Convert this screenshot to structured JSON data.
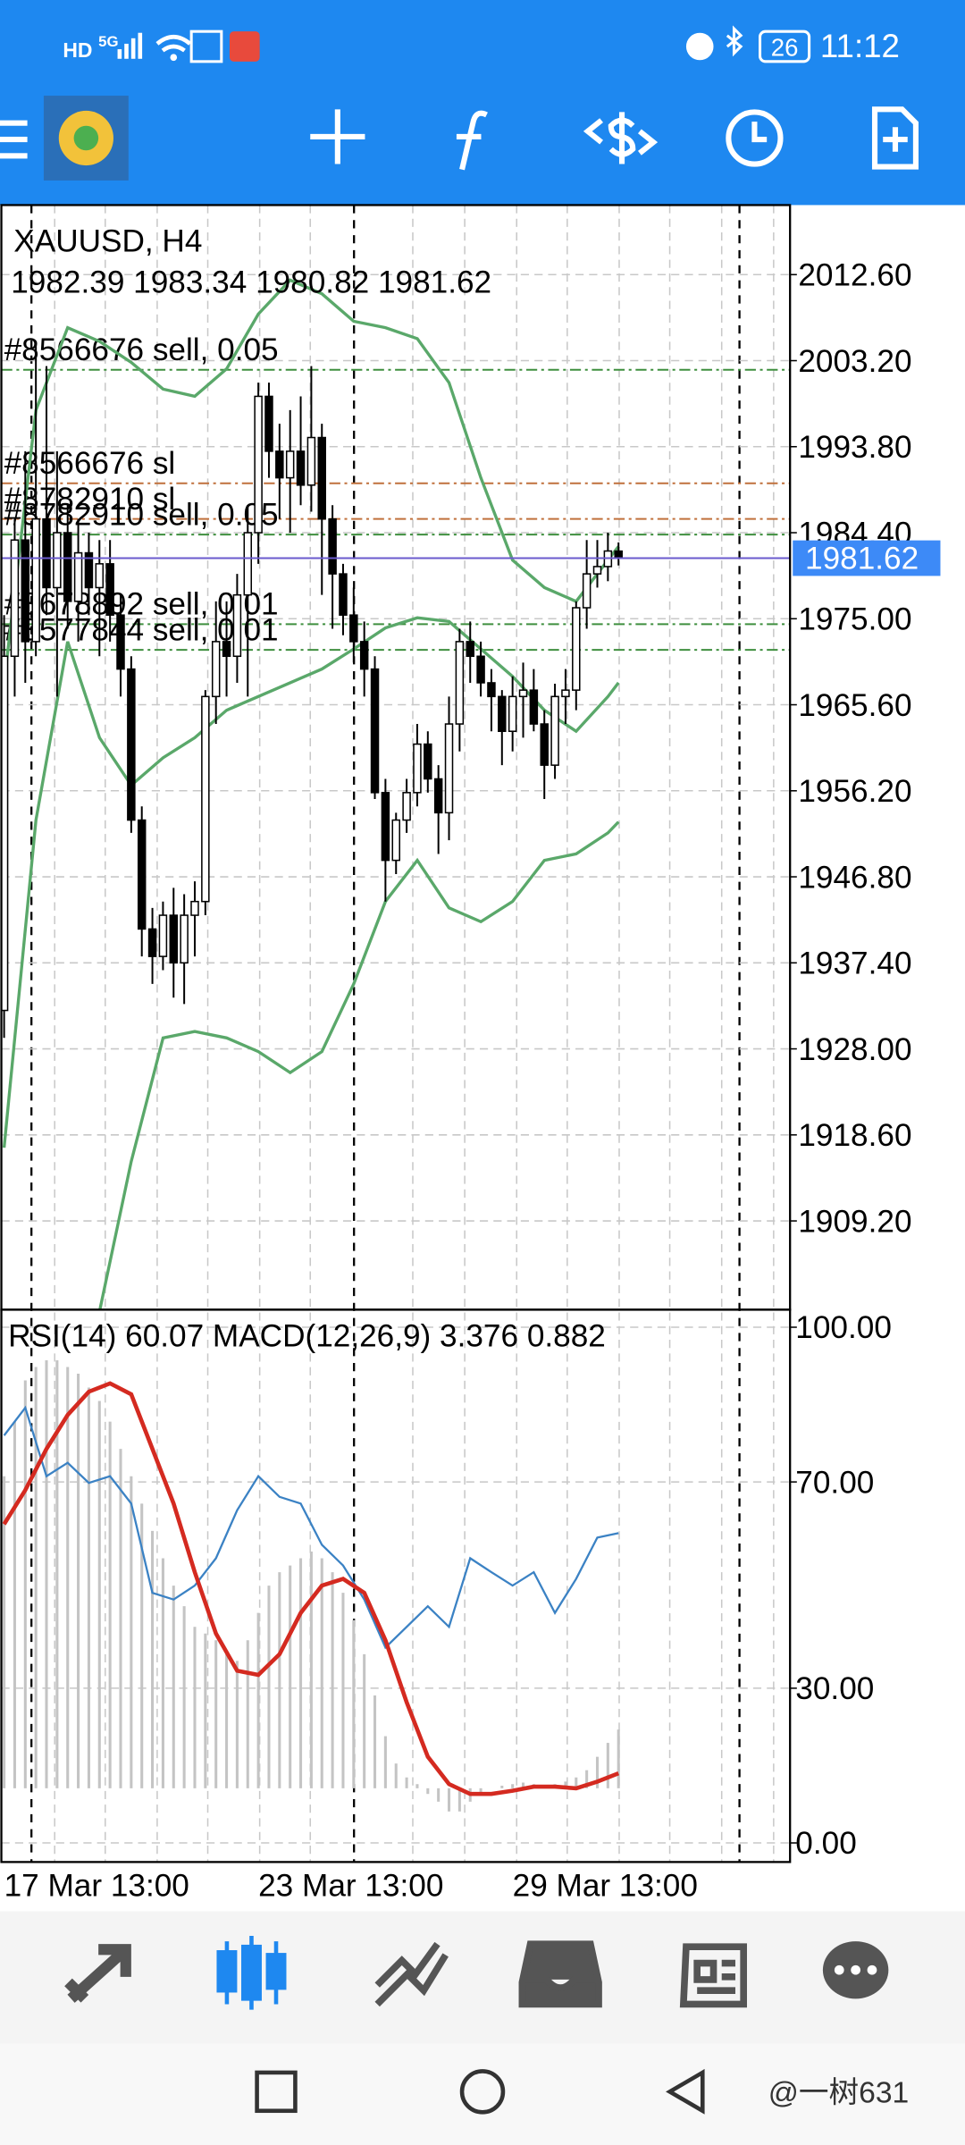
{
  "status_bar": {
    "network": "HD",
    "signal": "5G",
    "time": "11:12",
    "battery": "26"
  },
  "chart_data": {
    "type": "candlestick",
    "title": "XAUUSD, H4",
    "subtitle": "1982.39 1983.34 1980.82 1981.62",
    "categories": [
      "17 Mar 13:00",
      null,
      null,
      null,
      null,
      null,
      null,
      null,
      null,
      null,
      null,
      null,
      null,
      null,
      null,
      null,
      null,
      null,
      null,
      null,
      null,
      null,
      null,
      null,
      "23 Mar 13:00",
      null,
      null,
      null,
      null,
      null,
      null,
      null,
      null,
      null,
      null,
      null,
      null,
      null,
      null,
      null,
      null,
      null,
      null,
      null,
      null,
      null,
      null,
      null,
      "29 Mar 13:00",
      null,
      null,
      null,
      null,
      null,
      null,
      null,
      null,
      null,
      null
    ],
    "ohlc": [
      [
        1932.2,
        1975.4,
        1929.2,
        1970.9
      ],
      [
        1970.9,
        1985.9,
        1966.5,
        1983.6
      ],
      [
        1983.6,
        1993.3,
        1968.0,
        1972.5
      ],
      [
        1972.5,
        2005.3,
        1970.9,
        1985.9
      ],
      [
        1985.9,
        2002.6,
        1975.4,
        1978.4
      ],
      [
        1978.4,
        1993.3,
        1966.5,
        1984.4
      ],
      [
        1984.4,
        1987.4,
        1973.9,
        1976.9
      ],
      [
        1976.9,
        1985.9,
        1972.5,
        1982.2
      ],
      [
        1982.2,
        1984.4,
        1975.4,
        1978.4
      ],
      [
        1978.4,
        1983.6,
        1970.9,
        1981.0
      ],
      [
        1981.0,
        1983.6,
        1972.5,
        1975.4
      ],
      [
        1975.4,
        1977.6,
        1966.5,
        1969.5
      ],
      [
        1969.5,
        1970.9,
        1951.6,
        1953.0
      ],
      [
        1953.0,
        1954.5,
        1938.1,
        1941.1
      ],
      [
        1941.1,
        1943.4,
        1935.1,
        1938.1
      ],
      [
        1938.1,
        1944.1,
        1936.6,
        1942.6
      ],
      [
        1942.6,
        1945.6,
        1933.6,
        1937.4
      ],
      [
        1937.4,
        1944.9,
        1932.9,
        1942.6
      ],
      [
        1942.6,
        1946.3,
        1938.1,
        1944.1
      ],
      [
        1944.1,
        1967.2,
        1942.6,
        1966.5
      ],
      [
        1966.5,
        1976.9,
        1963.5,
        1972.5
      ],
      [
        1972.5,
        1976.9,
        1966.5,
        1970.9
      ],
      [
        1970.9,
        1979.9,
        1968.0,
        1977.6
      ],
      [
        1977.6,
        1987.4,
        1966.5,
        1984.4
      ],
      [
        1984.4,
        2000.8,
        1981.0,
        1999.3
      ],
      [
        1999.3,
        2000.8,
        1990.4,
        1993.3
      ],
      [
        1993.3,
        1996.3,
        1985.9,
        1990.4
      ],
      [
        1990.4,
        1997.8,
        1984.4,
        1993.3
      ],
      [
        1993.3,
        1999.3,
        1987.4,
        1989.6
      ],
      [
        1989.6,
        2002.6,
        1986.7,
        1994.8
      ],
      [
        1994.8,
        1996.3,
        1977.6,
        1985.9
      ],
      [
        1985.9,
        1987.4,
        1973.9,
        1979.9
      ],
      [
        1979.9,
        1981.0,
        1973.2,
        1975.4
      ],
      [
        1975.4,
        1978.4,
        1970.2,
        1972.5
      ],
      [
        1972.5,
        1974.7,
        1966.5,
        1969.5
      ],
      [
        1969.5,
        1970.9,
        1955.3,
        1956.0
      ],
      [
        1956.0,
        1957.5,
        1944.1,
        1948.6
      ],
      [
        1948.6,
        1953.8,
        1947.1,
        1953.0
      ],
      [
        1953.0,
        1957.5,
        1951.6,
        1956.0
      ],
      [
        1956.0,
        1963.5,
        1954.5,
        1961.3
      ],
      [
        1961.3,
        1962.7,
        1956.0,
        1957.5
      ],
      [
        1957.5,
        1959.0,
        1949.3,
        1953.8
      ],
      [
        1953.8,
        1966.5,
        1950.8,
        1963.5
      ],
      [
        1963.5,
        1973.9,
        1960.5,
        1972.5
      ],
      [
        1972.5,
        1974.7,
        1968.0,
        1970.9
      ],
      [
        1970.9,
        1972.5,
        1966.5,
        1968.0
      ],
      [
        1968.0,
        1969.5,
        1962.7,
        1966.5
      ],
      [
        1966.5,
        1967.2,
        1959.0,
        1962.7
      ],
      [
        1962.7,
        1968.7,
        1960.5,
        1966.5
      ],
      [
        1966.5,
        1970.2,
        1962.0,
        1967.2
      ],
      [
        1967.2,
        1969.5,
        1962.7,
        1963.5
      ],
      [
        1963.5,
        1965.0,
        1955.3,
        1959.0
      ],
      [
        1959.0,
        1967.9,
        1957.5,
        1966.5
      ],
      [
        1966.5,
        1969.5,
        1963.5,
        1967.2
      ],
      [
        1967.2,
        1976.9,
        1965.0,
        1976.2
      ],
      [
        1976.2,
        1983.6,
        1973.9,
        1979.9
      ],
      [
        1979.9,
        1983.6,
        1978.4,
        1980.7
      ],
      [
        1980.7,
        1984.4,
        1979.1,
        1982.4
      ],
      [
        1982.39,
        1983.34,
        1980.82,
        1981.62
      ]
    ],
    "bull_color": "#ffffff",
    "bear_color": "#000000",
    "ylim": [
      1899.5,
      2020.2
    ],
    "yticks": [
      {
        "value": 2012.6,
        "label": "2012.60"
      },
      {
        "value": 2003.2,
        "label": "2003.20"
      },
      {
        "value": 1993.8,
        "label": "1993.80"
      },
      {
        "value": 1984.4,
        "label": "1984.40"
      },
      {
        "value": 1975,
        "label": "1975.00"
      },
      {
        "value": 1965.6,
        "label": "1965.60"
      },
      {
        "value": 1956.2,
        "label": "1956.20"
      },
      {
        "value": 1946.8,
        "label": "1946.80"
      },
      {
        "value": 1937.4,
        "label": "1937.40"
      },
      {
        "value": 1928,
        "label": "1928.00"
      },
      {
        "value": 1918.6,
        "label": "1918.60"
      },
      {
        "value": 1909.2,
        "label": "1909.20"
      }
    ],
    "grid": true,
    "bands": {
      "color": "#5aa86a",
      "x": [
        0,
        3,
        6,
        9,
        12,
        15,
        18,
        21,
        24,
        27,
        30,
        33,
        36,
        39,
        42,
        45,
        48,
        51,
        54,
        57,
        58
      ],
      "upper": [
        1968.0,
        1997.8,
        2006.8,
        2005.3,
        2003.0,
        2000.1,
        1999.3,
        2002.3,
        2008.3,
        2012.0,
        2010.5,
        2007.5,
        2006.8,
        2005.6,
        2000.8,
        1990.4,
        1981.4,
        1978.4,
        1976.9,
        1981.4,
        1982.9
      ],
      "middle": [
        1917.2,
        1953.0,
        1972.5,
        1962.0,
        1956.8,
        1959.8,
        1962.0,
        1965.0,
        1966.5,
        1968.0,
        1969.5,
        1971.7,
        1974.0,
        1975.1,
        1974.7,
        1971.7,
        1968.7,
        1965.0,
        1962.7,
        1966.5,
        1968.0
      ],
      "lower": [
        1863.5,
        1878.4,
        1891.9,
        1899.3,
        1915.7,
        1929.2,
        1929.9,
        1929.2,
        1927.7,
        1925.4,
        1927.7,
        1935.1,
        1944.1,
        1948.6,
        1943.4,
        1941.9,
        1944.1,
        1948.6,
        1949.3,
        1951.6,
        1952.8
      ]
    },
    "orders": [
      {
        "label": "#8566676 sell, 0.05",
        "price": 2002.2,
        "color": "#3f8f3f"
      },
      {
        "label": "#8566676 sl",
        "price": 1989.8,
        "color": "#c0703c"
      },
      {
        "label": "#8782910 sl",
        "price": 1985.9,
        "color": "#c0703c"
      },
      {
        "label": "#8782910 sell, 0.05",
        "price": 1984.2,
        "color": "#3f8f3f"
      },
      {
        "label": "#8678892 sell, 0.01",
        "price": 1974.4,
        "color": "#3f8f3f"
      },
      {
        "label": "#8577844 sell, 0.01",
        "price": 1971.6,
        "color": "#3f8f3f"
      }
    ],
    "current_price": 1981.62,
    "current_price_color": "#3d8af7",
    "indicator": {
      "title": "RSI(14) 60.07 MACD(12,26,9) 3.376 0.882",
      "ylim": [
        -3.7,
        103.4
      ],
      "yticks": [
        {
          "value": 100,
          "label": "100.00"
        },
        {
          "value": 70,
          "label": "70.00"
        },
        {
          "value": 30,
          "label": "30.00"
        },
        {
          "value": 0,
          "label": "0.00"
        }
      ],
      "rsi": {
        "color": "#3b82c4",
        "x": [
          0,
          2,
          4,
          6,
          8,
          10,
          12,
          14,
          16,
          18,
          20,
          22,
          24,
          26,
          28,
          30,
          32,
          34,
          36,
          38,
          40,
          42,
          44,
          46,
          48,
          50,
          52,
          54,
          56,
          58
        ],
        "values": [
          79.0,
          84.4,
          71.1,
          73.7,
          69.8,
          71.1,
          65.8,
          48.5,
          47.2,
          49.9,
          55.2,
          64.5,
          71.1,
          67.1,
          65.8,
          57.8,
          53.8,
          47.2,
          37.9,
          41.9,
          45.9,
          41.9,
          55.2,
          52.5,
          49.9,
          52.5,
          44.6,
          51.2,
          59.2,
          60.07
        ]
      },
      "signal": {
        "color": "#d42a20",
        "x": [
          0,
          2,
          4,
          6,
          8,
          10,
          12,
          14,
          16,
          18,
          20,
          22,
          24,
          26,
          28,
          30,
          32,
          34,
          36,
          38,
          40,
          42,
          44,
          46,
          48,
          50,
          52,
          54,
          56,
          58
        ],
        "values": [
          61.8,
          68.4,
          76.4,
          83.0,
          87.5,
          89.1,
          87.0,
          76.4,
          65.8,
          52.5,
          40.6,
          33.4,
          32.6,
          36.6,
          44.6,
          49.9,
          51.2,
          48.5,
          39.3,
          27.3,
          16.7,
          11.4,
          9.5,
          9.5,
          10.1,
          10.9,
          10.9,
          10.6,
          11.9,
          13.5
        ]
      },
      "histogram": {
        "color": "#c4c4c4",
        "base": 10.6,
        "values": [
          71.1,
          81.7,
          89.7,
          92.3,
          93.6,
          93.6,
          92.3,
          91.0,
          88.3,
          85.7,
          81.7,
          76.4,
          71.1,
          65.8,
          60.5,
          55.2,
          49.9,
          45.9,
          41.9,
          40.6,
          39.3,
          36.6,
          35.3,
          39.3,
          44.6,
          49.9,
          52.5,
          53.8,
          55.2,
          56.5,
          55.2,
          52.5,
          48.5,
          43.2,
          36.6,
          28.6,
          20.7,
          15.4,
          12.7,
          11.4,
          9.5,
          8.0,
          6.1,
          6.1,
          8.0,
          9.5,
          10.6,
          11.1,
          11.4,
          11.7,
          11.4,
          11.1,
          11.4,
          11.9,
          12.7,
          14.1,
          16.7,
          19.4,
          22.0
        ]
      }
    }
  },
  "watermark": "@一树631"
}
